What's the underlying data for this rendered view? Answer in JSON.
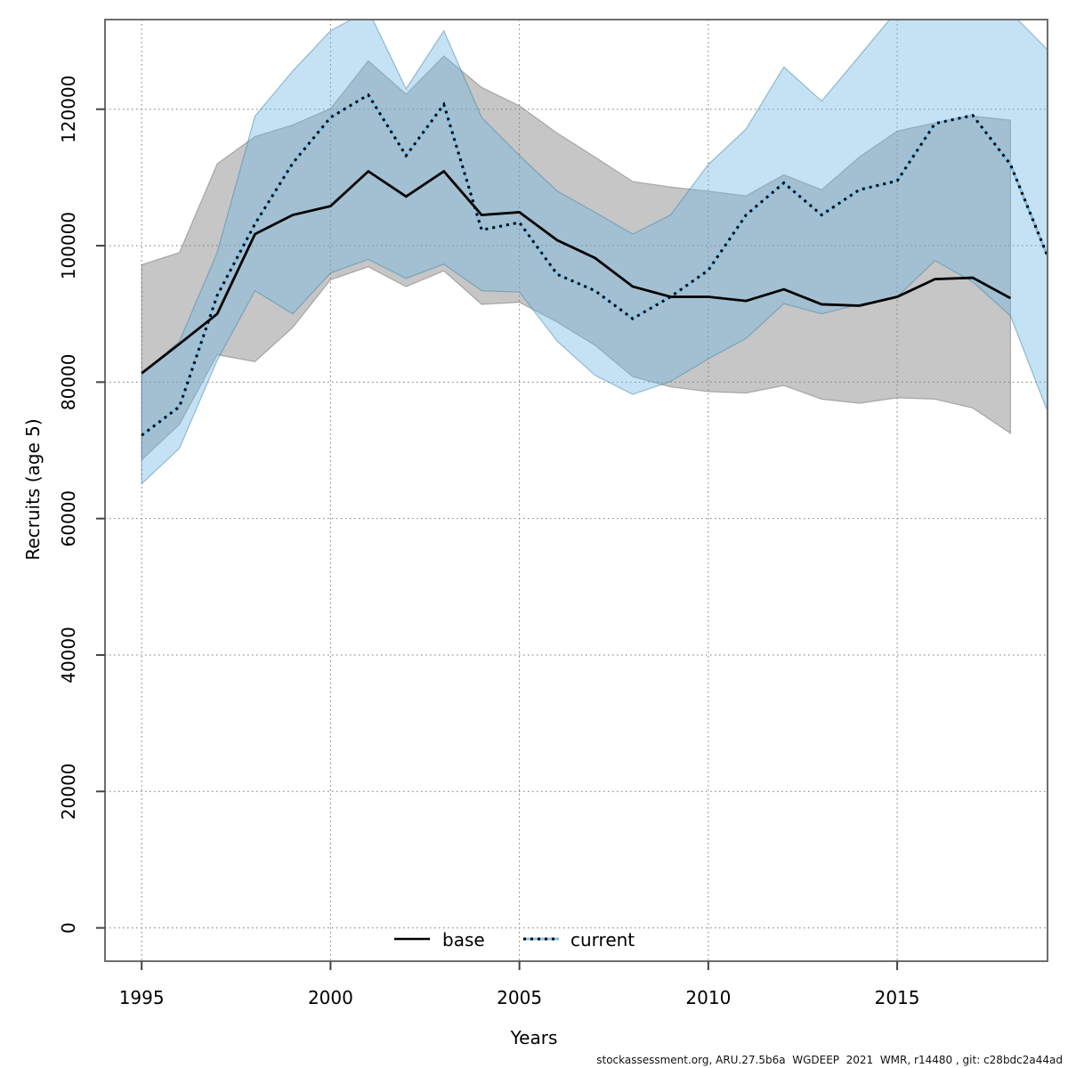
{
  "chart_data": {
    "type": "line",
    "title": "",
    "xlabel": "Years",
    "ylabel": "Recruits (age 5)",
    "footer": "stockassessment.org, ARU.27.5b6a  WGDEEP  2021  WMR, r14480 , git: c28bdc2a44ad",
    "x_ticks": [
      1995,
      2000,
      2005,
      2010,
      2015
    ],
    "y_ticks": [
      0,
      20000,
      40000,
      60000,
      80000,
      100000,
      120000
    ],
    "xlim": [
      1994.03,
      2018.98
    ],
    "ylim": [
      -4880,
      133140
    ],
    "grid": true,
    "legend_position": "bottom-center-inside",
    "colors": {
      "base_line": "#000000",
      "base_band_fill": "rgba(128,128,128,0.45)",
      "base_band_edge": "rgba(100,100,100,0.45)",
      "current_line_under": "#85c2e6",
      "current_line_dash": "#000000",
      "current_band_fill": "rgba(108,182,228,0.40)",
      "current_band_edge": "rgba(70,130,170,0.50)",
      "grid": "#777777",
      "frame": "#6e6e6e",
      "tick": "#444444",
      "text": "#000000"
    },
    "series": [
      {
        "name": "base",
        "line_style": "solid",
        "years": [
          1995,
          1996,
          1997,
          1998,
          1999,
          2000,
          2001,
          2002,
          2003,
          2004,
          2005,
          2006,
          2007,
          2008,
          2009,
          2010,
          2011,
          2012,
          2013,
          2014,
          2015,
          2016,
          2017,
          2018
        ],
        "values": [
          81300,
          85600,
          90000,
          101700,
          104500,
          105800,
          110900,
          107200,
          110900,
          104500,
          104900,
          100800,
          98200,
          94000,
          92500,
          92500,
          91900,
          93600,
          91400,
          91200,
          92500,
          95100,
          95300,
          92300
        ],
        "upper": [
          97200,
          99000,
          112000,
          116000,
          117700,
          120100,
          127100,
          122200,
          127800,
          123200,
          120500,
          116500,
          113000,
          109400,
          108600,
          108000,
          107300,
          110400,
          108200,
          113000,
          116800,
          118000,
          119000,
          118400
        ],
        "lower": [
          68600,
          73800,
          84000,
          83000,
          88000,
          95000,
          96900,
          94000,
          96300,
          91400,
          91700,
          88800,
          85400,
          80800,
          79300,
          78600,
          78400,
          79500,
          77500,
          76900,
          77700,
          77500,
          76200,
          72500
        ]
      },
      {
        "name": "current",
        "line_style": "dotted",
        "years": [
          1995,
          1996,
          1997,
          1998,
          1999,
          2000,
          2001,
          2002,
          2003,
          2004,
          2005,
          2006,
          2007,
          2008,
          2009,
          2010,
          2011,
          2012,
          2013,
          2014,
          2015,
          2016,
          2017,
          2018,
          2019
        ],
        "values": [
          72200,
          76400,
          92700,
          103200,
          112100,
          118800,
          122100,
          113200,
          120700,
          102300,
          103400,
          95800,
          93400,
          89300,
          92500,
          96400,
          104500,
          109200,
          104500,
          108200,
          109500,
          117900,
          119100,
          111900,
          98200
        ],
        "upper": [
          81200,
          86000,
          99000,
          119000,
          125600,
          131500,
          134500,
          123000,
          131500,
          118800,
          113200,
          108000,
          104900,
          101700,
          104500,
          111900,
          117100,
          126200,
          121200,
          127800,
          134500,
          135500,
          135500,
          134200,
          128600
        ],
        "lower": [
          65100,
          70300,
          83200,
          93400,
          90000,
          96000,
          98000,
          95200,
          97300,
          93400,
          93200,
          86000,
          81000,
          78200,
          80100,
          83400,
          86400,
          91500,
          90000,
          91400,
          92500,
          97800,
          94700,
          89700,
          75400
        ]
      }
    ]
  }
}
